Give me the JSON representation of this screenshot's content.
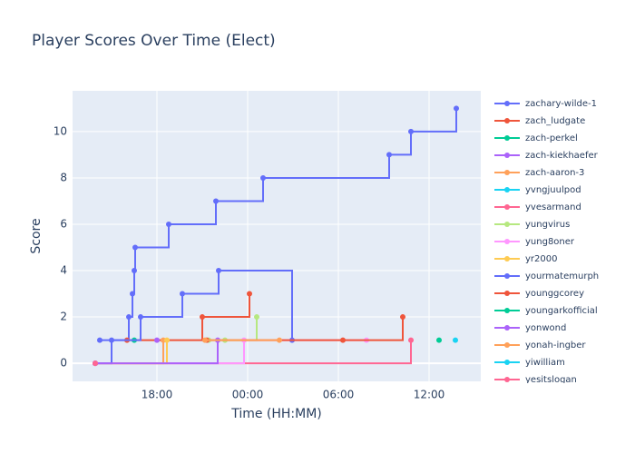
{
  "chart_data": {
    "type": "line",
    "line_shape": "step",
    "title": "Player Scores Over Time (Elect)",
    "x_label": "Time (HH:MM)",
    "y_label": "Score",
    "xlim": [
      12.42,
      39.42
    ],
    "ylim": [
      -0.78,
      11.76
    ],
    "xticks": [
      {
        "value": 18,
        "label": "18:00"
      },
      {
        "value": 24,
        "label": "00:00"
      },
      {
        "value": 30,
        "label": "06:00"
      },
      {
        "value": 36,
        "label": "12:00"
      }
    ],
    "yticks": [
      0,
      2,
      4,
      6,
      8,
      10
    ],
    "grid": true,
    "legend": "right",
    "series": [
      {
        "name": "zachary-wilde-1",
        "color": "#636efa",
        "x": [
          14.22,
          16.14,
          16.38,
          16.5,
          16.56,
          18.78,
          21.9,
          25.02,
          33.36,
          34.8,
          37.8
        ],
        "values": [
          1,
          2,
          3,
          4,
          5,
          6,
          7,
          8,
          9,
          10,
          11
        ]
      },
      {
        "name": "zach_ludgate",
        "color": "#ef553b",
        "x": [
          16.02,
          21.0,
          24.12
        ],
        "values": [
          1,
          2,
          3
        ]
      },
      {
        "name": "zach-perkel",
        "color": "#00cc96",
        "x": [
          16.5
        ],
        "values": [
          1
        ]
      },
      {
        "name": "zach-kiekhaefer",
        "color": "#ab63fa",
        "x": [
          18.0
        ],
        "values": [
          1
        ]
      },
      {
        "name": "zach-aaron-3",
        "color": "#ffa15a",
        "x": [
          13.92,
          18.42
        ],
        "values": [
          0,
          1
        ]
      },
      {
        "name": "yvngjuulpod",
        "color": "#19d3f3",
        "x": [
          13.92
        ],
        "values": [
          0
        ]
      },
      {
        "name": "yvesarmand",
        "color": "#ff6692",
        "x": [
          13.92,
          34.8
        ],
        "values": [
          0,
          1
        ]
      },
      {
        "name": "yungvirus",
        "color": "#b6e880",
        "x": [
          21.42,
          22.5,
          24.6
        ],
        "values": [
          1,
          1,
          2
        ]
      },
      {
        "name": "yung8oner",
        "color": "#ff97ff",
        "x": [
          13.92,
          23.76,
          31.86
        ],
        "values": [
          0,
          1,
          1
        ]
      },
      {
        "name": "yr2000",
        "color": "#fecb52",
        "x": [
          13.92,
          18.66
        ],
        "values": [
          0,
          1
        ]
      },
      {
        "name": "yourmatemurph",
        "color": "#636efa",
        "x": [
          13.92,
          15.0,
          16.92,
          19.68,
          22.08,
          26.94
        ],
        "values": [
          0,
          1,
          2,
          3,
          4,
          1
        ]
      },
      {
        "name": "younggcorey",
        "color": "#ef553b",
        "x": [
          21.3,
          30.3,
          34.26
        ],
        "values": [
          1,
          1,
          2
        ]
      },
      {
        "name": "youngarkofficial",
        "color": "#00cc96",
        "x": [
          36.66
        ],
        "values": [
          1
        ]
      },
      {
        "name": "yonwond",
        "color": "#ab63fa",
        "x": [
          13.92,
          22.02
        ],
        "values": [
          0,
          1
        ]
      },
      {
        "name": "yonah-ingber",
        "color": "#ffa15a",
        "x": [
          21.18,
          26.1
        ],
        "values": [
          1,
          1
        ]
      },
      {
        "name": "yiwilliam",
        "color": "#19d3f3",
        "x": [
          37.74
        ],
        "values": [
          1
        ]
      },
      {
        "name": "yesitslogan",
        "color": "#ff6692",
        "x": [
          13.92
        ],
        "values": [
          0
        ]
      }
    ]
  }
}
